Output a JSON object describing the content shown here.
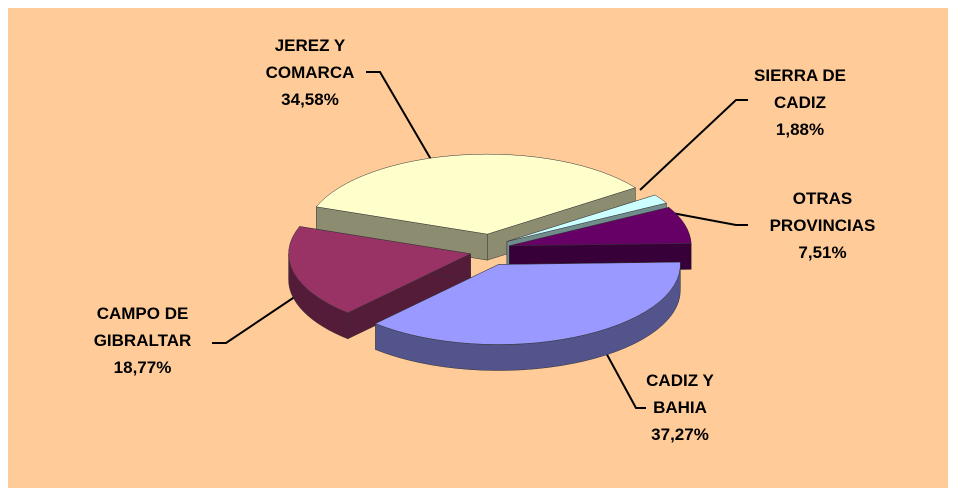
{
  "chart_data": {
    "type": "pie",
    "categories": [
      "JEREZ Y COMARCA",
      "SIERRA DE CADIZ",
      "OTRAS PROVINCIAS",
      "CADIZ Y BAHIA",
      "CAMPO DE GIBRALTAR"
    ],
    "values": [
      34.58,
      1.88,
      7.51,
      37.27,
      18.77
    ],
    "value_labels": [
      "34,58%",
      "1,88%",
      "7,51%",
      "37,27%",
      "18,77%"
    ],
    "colors": [
      "#ffffcc",
      "#ccffff",
      "#660066",
      "#9999ff",
      "#993366"
    ],
    "exploded": true,
    "three_d": true
  }
}
